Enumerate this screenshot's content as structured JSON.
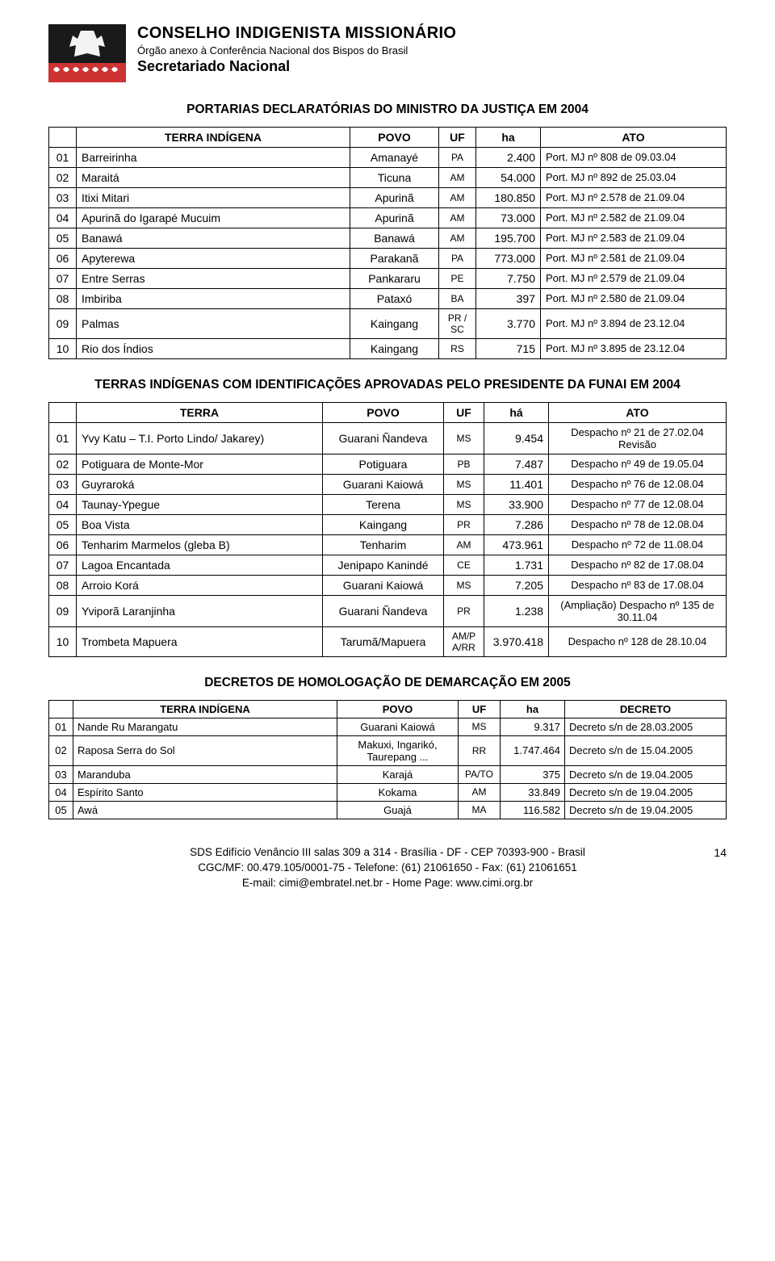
{
  "header": {
    "title": "CONSELHO INDIGENISTA MISSIONÁRIO",
    "subtitle": "Órgão anexo à Conferência Nacional dos Bispos do Brasil",
    "secretariat": "Secretariado Nacional"
  },
  "section1": {
    "title": "PORTARIAS DECLARATÓRIAS DO MINISTRO DA JUSTIÇA EM 2004",
    "columns": [
      "",
      "TERRA INDÍGENA",
      "POVO",
      "UF",
      "ha",
      "ATO"
    ],
    "rows": [
      [
        "01",
        "Barreirinha",
        "Amanayé",
        "PA",
        "2.400",
        "Port. MJ nº 808 de 09.03.04"
      ],
      [
        "02",
        "Maraitá",
        "Ticuna",
        "AM",
        "54.000",
        "Port. MJ nº  892 de 25.03.04"
      ],
      [
        "03",
        "Itixi Mitari",
        "Apurinã",
        "AM",
        "180.850",
        "Port. MJ nº 2.578 de 21.09.04"
      ],
      [
        "04",
        "Apurinã do Igarapé Mucuim",
        "Apurinã",
        "AM",
        "73.000",
        "Port. MJ nº 2.582 de 21.09.04"
      ],
      [
        "05",
        "Banawá",
        "Banawá",
        "AM",
        "195.700",
        "Port. MJ nº 2.583 de 21.09.04"
      ],
      [
        "06",
        "Apyterewa",
        "Parakanã",
        "PA",
        "773.000",
        "Port. MJ nº 2.581 de 21.09.04"
      ],
      [
        "07",
        "Entre Serras",
        "Pankararu",
        "PE",
        "7.750",
        "Port. MJ nº 2.579 de 21.09.04"
      ],
      [
        "08",
        "Imbiriba",
        "Pataxó",
        "BA",
        "397",
        "Port. MJ nº 2.580 de 21.09.04"
      ],
      [
        "09",
        "Palmas",
        "Kaingang",
        "PR / SC",
        "3.770",
        "Port. MJ nº 3.894 de 23.12.04"
      ],
      [
        "10",
        "Rio dos Índios",
        "Kaingang",
        "RS",
        "715",
        "Port. MJ nº 3.895 de 23.12.04"
      ]
    ]
  },
  "section2": {
    "title": "TERRAS INDÍGENAS COM IDENTIFICAÇÕES APROVADAS PELO PRESIDENTE DA FUNAI EM 2004",
    "columns": [
      "",
      "TERRA",
      "POVO",
      "UF",
      "há",
      "ATO"
    ],
    "rows": [
      [
        "01",
        "Yvy Katu – T.I. Porto Lindo/ Jakarey)",
        "Guarani Ñandeva",
        "MS",
        "9.454",
        "Despacho nº 21 de 27.02.04\nRevisão"
      ],
      [
        "02",
        "Potiguara de Monte-Mor",
        "Potiguara",
        "PB",
        "7.487",
        "Despacho nº 49 de 19.05.04"
      ],
      [
        "03",
        "Guyraroká",
        "Guarani Kaiowá",
        "MS",
        "11.401",
        "Despacho nº 76 de 12.08.04"
      ],
      [
        "04",
        "Taunay-Ypegue",
        "Terena",
        "MS",
        "33.900",
        "Despacho nº 77 de 12.08.04"
      ],
      [
        "05",
        "Boa Vista",
        "Kaingang",
        "PR",
        "7.286",
        "Despacho nº 78 de 12.08.04"
      ],
      [
        "06",
        "Tenharim Marmelos (gleba B)",
        "Tenharim",
        "AM",
        "473.961",
        "Despacho nº 72 de 11.08.04"
      ],
      [
        "07",
        "Lagoa Encantada",
        "Jenipapo Kanindé",
        "CE",
        "1.731",
        "Despacho nº 82 de 17.08.04"
      ],
      [
        "08",
        "Arroio Korá",
        "Guarani Kaiowá",
        "MS",
        "7.205",
        "Despacho nº 83 de 17.08.04"
      ],
      [
        "09",
        "Yviporã Laranjinha",
        "Guarani Ñandeva",
        "PR",
        "1.238",
        "(Ampliação) Despacho nº 135 de 30.11.04"
      ],
      [
        "10",
        "Trombeta Mapuera",
        "Tarumã/Mapuera",
        "AM/P A/RR",
        "3.970.418",
        "Despacho nº 128 de 28.10.04"
      ]
    ]
  },
  "section3": {
    "title": "DECRETOS DE HOMOLOGAÇÃO DE DEMARCAÇÃO EM 2005",
    "columns": [
      "",
      "TERRA INDÍGENA",
      "POVO",
      "UF",
      "ha",
      "DECRETO"
    ],
    "rows": [
      [
        "01",
        "Nande Ru Marangatu",
        "Guarani Kaiowá",
        "MS",
        "9.317",
        "Decreto s/n de 28.03.2005"
      ],
      [
        "02",
        "Raposa Serra do Sol",
        "Makuxi, Ingarikó, Taurepang ...",
        "RR",
        "1.747.464",
        "Decreto s/n de 15.04.2005"
      ],
      [
        "03",
        "Maranduba",
        "Karajá",
        "PA/TO",
        "375",
        "Decreto  s/n de 19.04.2005"
      ],
      [
        "04",
        "Espírito Santo",
        "Kokama",
        "AM",
        "33.849",
        "Decreto s/n de 19.04.2005"
      ],
      [
        "05",
        "Awá",
        "Guajá",
        "MA",
        "116.582",
        "Decreto s/n de 19.04.2005"
      ]
    ]
  },
  "footer": {
    "line1": "SDS Edifício Venâncio III salas 309 a 314 - Brasília - DF - CEP 70393-900 - Brasil",
    "line2": "CGC/MF: 00.479.105/0001-75 - Telefone: (61) 21061650 - Fax: (61) 21061651",
    "line3": "E-mail: cimi@embratel.net.br - Home Page: www.cimi.org.br",
    "page": "14"
  },
  "colors": {
    "text": "#000000",
    "background": "#ffffff",
    "border": "#000000",
    "logo_dark": "#1a1a1a",
    "logo_red": "#cc3333"
  }
}
